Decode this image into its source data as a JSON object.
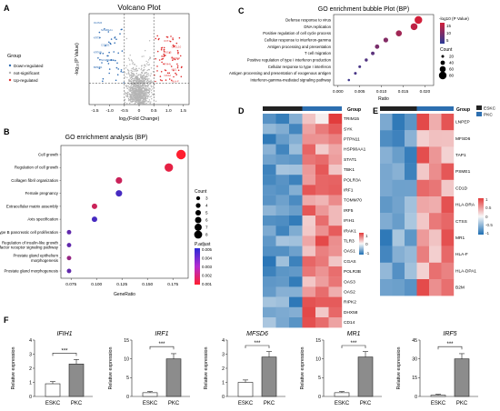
{
  "colors": {
    "up": "#e03131",
    "down": "#2f6db5",
    "ns": "#b5b5b5",
    "hm_hi": "#e23c3c",
    "hm_mid": "#f7f7f7",
    "hm_lo": "#1f6fb3",
    "esk": "#222222",
    "pkc": "#2d6fb0",
    "bar": "#8c8c8c",
    "bar_esk": "#ffffff"
  },
  "panelA": {
    "letter": "A",
    "title": "Volcano Plot",
    "xlabel": "log₂(Fold Change)",
    "ylabel": "-log₁₀(P Value)",
    "xticks": [
      "-1.5",
      "-1.0",
      "-0.5",
      "0",
      "0.5",
      "1.0",
      "1.5"
    ],
    "legend_title": "Group",
    "legend": [
      "Down-regulated",
      "not-significant",
      "Up-regulated"
    ]
  },
  "panelB": {
    "letter": "B",
    "title": "GO enrichment analysis (BP)",
    "xlabel": "GeneRatio",
    "xticks": [
      "0.075",
      "0.100",
      "0.125",
      "0.150",
      "0.175"
    ],
    "count_title": "Count",
    "count_levels": [
      "3",
      "4",
      "5",
      "6",
      "7",
      "8"
    ],
    "p_title": "P.adjust",
    "p_levels": [
      "0.005",
      "0.004",
      "0.003",
      "0.002",
      "0.001"
    ]
  },
  "panelC": {
    "letter": "C",
    "title": "GO enrichment bubble Plot (BP)",
    "xlabel": "Ratio",
    "xticks": [
      "0.000",
      "0.005",
      "0.010",
      "0.015",
      "0.020"
    ],
    "color_title": "-log10 (P Value)",
    "color_ticks": [
      "15",
      "10",
      "5"
    ],
    "count_title": "Count",
    "count_levels": [
      "20",
      "40",
      "60",
      "80"
    ]
  },
  "panelD": {
    "letter": "D",
    "group_label": "Group",
    "scale": [
      "1",
      "0",
      "-1"
    ]
  },
  "panelE": {
    "letter": "E",
    "group_label": "Group",
    "legend": [
      "ESKC",
      "PKC"
    ],
    "scale": [
      "1",
      "0.5",
      "0",
      "-0.5",
      "-1"
    ]
  },
  "panelF": {
    "letter": "F",
    "ylabel": "Relative expression",
    "sig": "***"
  },
  "chart_data": [
    {
      "type": "scatter",
      "panel": "A",
      "title": "Volcano Plot",
      "xlabel": "log2(Fold Change)",
      "ylabel": "-log10(P Value)",
      "xlim": [
        -1.7,
        1.7
      ],
      "thresholds": {
        "logfc": [
          -0.5,
          0.5
        ]
      },
      "down_genes": [
        "OLFM4",
        "SCGB1A1",
        "KRT5",
        "CCND1",
        "KRT6B",
        "SCGB3A1",
        "BPIFB1"
      ],
      "up_genes": [
        "IFIT1",
        "CXCL10",
        "ISG15",
        "RSAD2",
        "IFI44L",
        "MX1",
        "OAS2",
        "HLA-F"
      ]
    },
    {
      "type": "scatter",
      "panel": "B",
      "title": "GO enrichment analysis (BP)",
      "xlabel": "GeneRatio",
      "xlim": [
        0.065,
        0.19
      ],
      "categories": [
        "Cell growth",
        "Regulation of cell growth",
        "Collagen fibril organization",
        "Female pregnancy",
        "Extracellular matrix assembly",
        "Axis specification",
        "Type B pancreatic cell proliferation",
        "Regulation of insulin-like growth factor receptor signaling pathway",
        "Prostate gland epithelium morphogenesis",
        "Prostate gland morphogenesis"
      ],
      "x": [
        0.183,
        0.171,
        0.122,
        0.122,
        0.098,
        0.098,
        0.073,
        0.073,
        0.073,
        0.073
      ],
      "count": [
        8,
        7,
        5,
        5,
        4,
        4,
        3,
        3,
        3,
        3
      ],
      "p_adjust": [
        0.001,
        0.0015,
        0.002,
        0.0045,
        0.002,
        0.0045,
        0.004,
        0.004,
        0.003,
        0.004
      ]
    },
    {
      "type": "scatter",
      "panel": "C",
      "title": "GO enrichment bubble Plot (BP)",
      "xlabel": "Ratio",
      "xlim": [
        -0.001,
        0.022
      ],
      "categories": [
        "Defense response to virus",
        "DNA replication",
        "Positive regulation of cell cycle process",
        "Cellular response to interferon-gamma",
        "Antigen processing and presentation",
        "T cell migration",
        "Positive regulation of type I interferon production",
        "Cellular response to type I interferon",
        "Antigen processing and presentation of exogenous antigen",
        "Interferon-gamma-mediated signaling pathway"
      ],
      "x": [
        0.0185,
        0.0175,
        0.014,
        0.011,
        0.009,
        0.008,
        0.0065,
        0.005,
        0.004,
        0.0025
      ],
      "count": [
        80,
        70,
        60,
        45,
        40,
        30,
        25,
        20,
        20,
        15
      ],
      "neglogp": [
        17,
        15,
        12,
        9,
        8,
        5,
        4,
        3,
        3,
        2
      ]
    },
    {
      "type": "heatmap",
      "panel": "D",
      "rows": [
        "TRIM15",
        "SYK",
        "PTPN11",
        "HSP90AA1",
        "STAT1",
        "TBK1",
        "POLR3A",
        "IRF1",
        "TOMM70",
        "IRF5",
        "IFIH1",
        "IRAK1",
        "TLR3",
        "OAS1",
        "CGAS",
        "POLR3B",
        "OAS3",
        "OAS2",
        "RIPK2",
        "DHX58",
        "CD14"
      ],
      "groups": [
        "ESKC",
        "ESKC",
        "ESKC",
        "PKC",
        "PKC",
        "PKC"
      ]
    },
    {
      "type": "heatmap",
      "panel": "E",
      "rows": [
        "LNPEP",
        "MFSD6",
        "TAP1",
        "PSME1",
        "CD1D",
        "HLA-DRA",
        "CTSS",
        "MR1",
        "HLA-F",
        "HLA-DPA1",
        "B2M"
      ],
      "groups": [
        "ESKC",
        "ESKC",
        "ESKC",
        "PKC",
        "PKC",
        "PKC"
      ]
    },
    {
      "type": "bar",
      "panel": "F",
      "charts": [
        {
          "gene": "IFIH1",
          "categories": [
            "ESKC",
            "PKC"
          ],
          "values": [
            0.9,
            2.3
          ],
          "ylim": [
            0,
            4
          ],
          "yticks": [
            "0",
            "1",
            "2",
            "3",
            "4"
          ]
        },
        {
          "gene": "IRF1",
          "categories": [
            "ESKC",
            "PKC"
          ],
          "values": [
            1.0,
            10.0
          ],
          "ylim": [
            0,
            15
          ],
          "yticks": [
            "0",
            "5",
            "10",
            "15"
          ]
        },
        {
          "gene": "MFSD6",
          "categories": [
            "ESKC",
            "PKC"
          ],
          "values": [
            1.0,
            2.8
          ],
          "ylim": [
            0,
            4
          ],
          "yticks": [
            "0",
            "1",
            "2",
            "3",
            "4"
          ]
        },
        {
          "gene": "MR1",
          "categories": [
            "ESKC",
            "PKC"
          ],
          "values": [
            1.0,
            10.5
          ],
          "ylim": [
            0,
            15
          ],
          "yticks": [
            "0",
            "5",
            "10",
            "15"
          ]
        },
        {
          "gene": "IRF5",
          "categories": [
            "ESKC",
            "PKC"
          ],
          "values": [
            1.0,
            30.0
          ],
          "ylim": [
            0,
            45
          ],
          "yticks": [
            "0",
            "15",
            "30",
            "45"
          ]
        }
      ]
    }
  ]
}
